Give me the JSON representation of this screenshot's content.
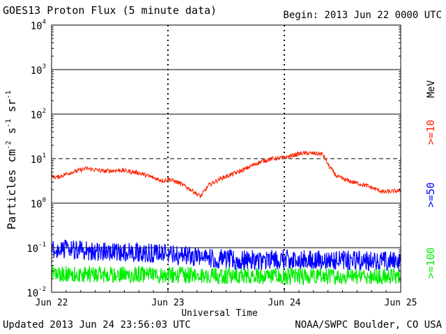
{
  "header": {
    "title": "GOES13 Proton Flux (5 minute data)",
    "begin": "Begin: 2013 Jun 22 0000 UTC"
  },
  "footer": {
    "updated": "Updated 2013 Jun 24 23:56:03 UTC",
    "credit": "NOAA/SWPC Boulder, CO USA"
  },
  "colors": {
    "ge10": "#ff2200",
    "ge50": "#0000ff",
    "ge100": "#00ee00",
    "axis": "#000000"
  },
  "chart_data": {
    "type": "line",
    "title": "GOES13 Proton Flux (5 minute data)",
    "xlabel": "Universal Time",
    "ylabel_parts": [
      "Particles cm",
      "-2",
      "s",
      "-1",
      "sr",
      "-1"
    ],
    "yscale": "log",
    "ylim_log10": [
      -2,
      4
    ],
    "ytick_log10": [
      -2,
      -1,
      0,
      1,
      2,
      3,
      4
    ],
    "ytick_mantissa": [
      "10",
      "10",
      "10",
      "10",
      "10",
      "10",
      "10"
    ],
    "ytick_exponent": [
      "-2",
      "-1",
      "0",
      "1",
      "2",
      "3",
      "4"
    ],
    "xlim_days": [
      0,
      3
    ],
    "x_ticks": [
      {
        "day": 0,
        "label": "Jun 22"
      },
      {
        "day": 1,
        "label": "Jun 23"
      },
      {
        "day": 2,
        "label": "Jun 24"
      },
      {
        "day": 3,
        "label": "Jun 25"
      }
    ],
    "threshold_log10": 1,
    "right_labels": {
      "unit": "MeV",
      "ge10": ">=10",
      "ge50": ">=50",
      "ge100": ">=100"
    },
    "series": [
      {
        "name": ">=10 MeV",
        "color": "#ff2200",
        "anchors_day": [
          0,
          0.05,
          0.15,
          0.3,
          0.45,
          0.6,
          0.75,
          0.9,
          0.97,
          1.0,
          1.1,
          1.2,
          1.28,
          1.35,
          1.45,
          1.55,
          1.65,
          1.75,
          1.82,
          1.9,
          2.0,
          2.08,
          2.15,
          2.25,
          2.33,
          2.38,
          2.45,
          2.55,
          2.7,
          2.85,
          3.0
        ],
        "anchors_log10": [
          0.6,
          0.58,
          0.68,
          0.78,
          0.72,
          0.74,
          0.68,
          0.55,
          0.5,
          0.55,
          0.45,
          0.3,
          0.15,
          0.4,
          0.55,
          0.65,
          0.75,
          0.88,
          0.95,
          1.0,
          1.02,
          1.08,
          1.12,
          1.12,
          1.1,
          0.85,
          0.6,
          0.5,
          0.4,
          0.25,
          0.28
        ],
        "noise": 0.05
      },
      {
        "name": ">=50 MeV",
        "color": "#0000ff",
        "anchors_day": [
          0,
          0.5,
          1.0,
          1.6,
          2.0,
          2.5,
          3.0
        ],
        "anchors_log10": [
          -1.05,
          -1.1,
          -1.15,
          -1.3,
          -1.28,
          -1.3,
          -1.32
        ],
        "noise": 0.3
      },
      {
        "name": ">=100 MeV",
        "color": "#00ee00",
        "anchors_day": [
          0,
          1.0,
          2.0,
          3.0
        ],
        "anchors_log10": [
          -1.6,
          -1.62,
          -1.65,
          -1.65
        ],
        "noise": 0.25
      }
    ]
  }
}
